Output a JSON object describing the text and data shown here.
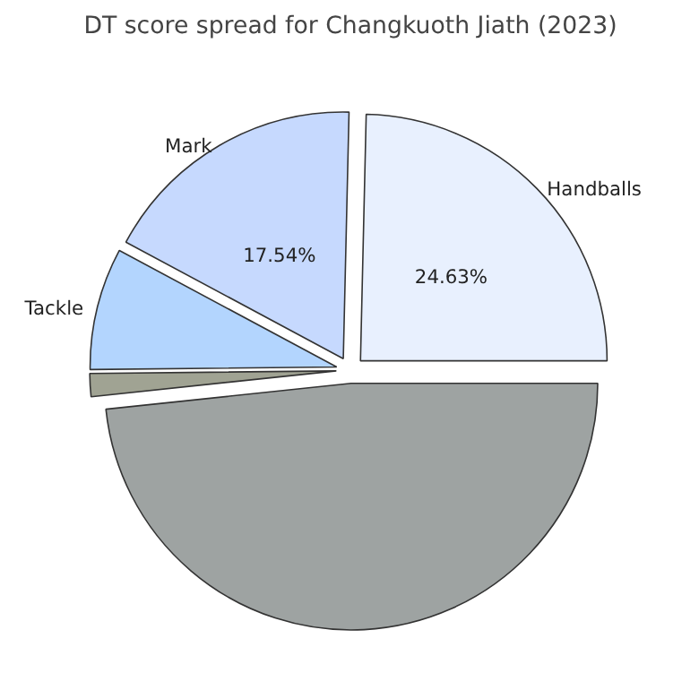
{
  "chart_data": {
    "type": "pie",
    "title": "DT score spread for Changkuoth Jiath (2023)",
    "categories": [
      "Handballs",
      "Mark",
      "Tackle",
      null,
      null
    ],
    "values": [
      24.63,
      17.54,
      8,
      1.5,
      48.33
    ],
    "colors": [
      "#e8f0fe",
      "#c6d9fe",
      "#b3d5fe",
      "#a0a393",
      "#9ea3a2"
    ],
    "value_labels": [
      "24.63%",
      "17.54%",
      null,
      null,
      null
    ]
  }
}
